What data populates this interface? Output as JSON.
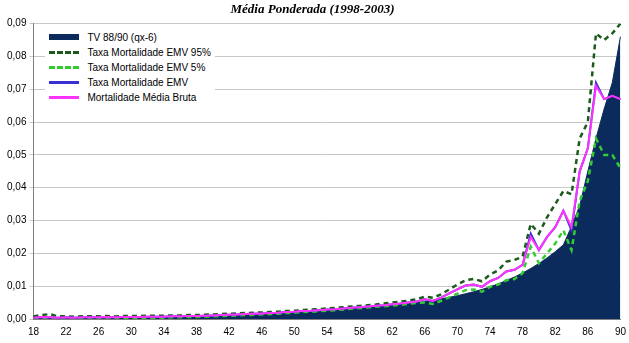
{
  "chart_data": {
    "type": "line",
    "title": "Média Ponderada (1998-2003)",
    "categories": [
      "18",
      null,
      null,
      null,
      "22",
      null,
      null,
      null,
      "26",
      null,
      null,
      null,
      "30",
      null,
      null,
      null,
      "34",
      null,
      null,
      null,
      "38",
      null,
      null,
      null,
      "42",
      null,
      null,
      null,
      "46",
      null,
      null,
      null,
      "50",
      null,
      null,
      null,
      "54",
      null,
      null,
      null,
      "58",
      null,
      null,
      null,
      "62",
      null,
      null,
      null,
      "66",
      null,
      null,
      null,
      "70",
      null,
      null,
      null,
      "74",
      null,
      null,
      null,
      "78",
      null,
      null,
      null,
      "82",
      null,
      null,
      null,
      "86",
      null,
      null,
      null,
      "90"
    ],
    "ylim": [
      0,
      0.09
    ],
    "yticks": [
      {
        "value": 0,
        "label": "0,00"
      },
      {
        "value": 0.01,
        "label": "0,01"
      },
      {
        "value": 0.02,
        "label": "0,02"
      },
      {
        "value": 0.03,
        "label": "0,03"
      },
      {
        "value": 0.04,
        "label": "0,04"
      },
      {
        "value": 0.05,
        "label": "0,05"
      },
      {
        "value": 0.06,
        "label": "0,06"
      },
      {
        "value": 0.07,
        "label": "0,07"
      },
      {
        "value": 0.08,
        "label": "0,08"
      },
      {
        "value": 0.09,
        "label": "0,09"
      }
    ],
    "grid": true,
    "legend": "upper left",
    "series": [
      {
        "name": "TV 88/90 (qx-6)",
        "type": "area",
        "color": "#0b2b5c",
        "line_style": "solid",
        "values": [
          0.0004,
          0.0004,
          0.0004,
          0.0004,
          0.0004,
          0.0004,
          0.0004,
          0.0004,
          0.0004,
          0.0004,
          0.0004,
          0.0005,
          0.0005,
          0.0005,
          0.0006,
          0.0006,
          0.0006,
          0.0007,
          0.0007,
          0.0008,
          0.0008,
          0.0009,
          0.0009,
          0.001,
          0.0011,
          0.0011,
          0.0012,
          0.0013,
          0.0015,
          0.0016,
          0.0017,
          0.0018,
          0.002,
          0.0021,
          0.0022,
          0.0024,
          0.0025,
          0.0027,
          0.0029,
          0.0031,
          0.0033,
          0.0035,
          0.0037,
          0.0039,
          0.0042,
          0.0044,
          0.0047,
          0.005,
          0.0053,
          0.0057,
          0.0061,
          0.0066,
          0.0071,
          0.0077,
          0.0083,
          0.009,
          0.0098,
          0.0107,
          0.0117,
          0.0128,
          0.014,
          0.0154,
          0.0169,
          0.0186,
          0.0205,
          0.0226,
          0.0282,
          0.0345,
          0.045,
          0.055,
          0.064,
          0.072,
          0.086
        ]
      },
      {
        "name": "Taxa Mortalidade EMV 95%",
        "type": "line",
        "color": "#1d5a1d",
        "line_style": "dashed",
        "values": [
          0.0008,
          0.0012,
          0.0015,
          0.0008,
          0.0008,
          0.0007,
          0.0008,
          0.0008,
          0.0008,
          0.0009,
          0.0008,
          0.0009,
          0.0009,
          0.0009,
          0.001,
          0.001,
          0.001,
          0.0011,
          0.0011,
          0.0012,
          0.0012,
          0.0013,
          0.0014,
          0.0015,
          0.0016,
          0.0017,
          0.0018,
          0.0019,
          0.002,
          0.0021,
          0.0022,
          0.0024,
          0.0025,
          0.0027,
          0.0029,
          0.003,
          0.0032,
          0.0034,
          0.0036,
          0.0038,
          0.004,
          0.0042,
          0.0044,
          0.0047,
          0.005,
          0.0053,
          0.0056,
          0.006,
          0.0068,
          0.0065,
          0.0075,
          0.009,
          0.0105,
          0.0118,
          0.0122,
          0.0115,
          0.0135,
          0.0148,
          0.0175,
          0.018,
          0.019,
          0.029,
          0.026,
          0.031,
          0.035,
          0.039,
          0.038,
          0.055,
          0.06,
          0.087,
          0.085,
          0.087,
          0.09
        ]
      },
      {
        "name": "Taxa Mortalidade EMV 5%",
        "type": "line",
        "color": "#33cc33",
        "line_style": "dashed",
        "values": [
          0.0001,
          0.0002,
          0.0002,
          0.0001,
          0.0002,
          0.0002,
          0.0002,
          0.0002,
          0.0002,
          0.0003,
          0.0003,
          0.0003,
          0.0003,
          0.0003,
          0.0004,
          0.0004,
          0.0004,
          0.0005,
          0.0005,
          0.0006,
          0.0006,
          0.0007,
          0.0008,
          0.0009,
          0.001,
          0.0011,
          0.0012,
          0.0013,
          0.0014,
          0.0015,
          0.0016,
          0.0018,
          0.0019,
          0.0021,
          0.0022,
          0.0024,
          0.0025,
          0.0027,
          0.0029,
          0.0031,
          0.0033,
          0.0035,
          0.0037,
          0.0039,
          0.0041,
          0.0043,
          0.0046,
          0.0049,
          0.005,
          0.0046,
          0.0055,
          0.0066,
          0.0077,
          0.0088,
          0.009,
          0.0083,
          0.0098,
          0.0105,
          0.0118,
          0.0122,
          0.014,
          0.022,
          0.017,
          0.02,
          0.023,
          0.027,
          0.021,
          0.036,
          0.042,
          0.055,
          0.05,
          0.05,
          0.046
        ]
      },
      {
        "name": "Taxa Mortalidade EMV",
        "type": "line",
        "color": "#3a2fd6",
        "line_style": "solid",
        "values": [
          0.0004,
          0.0006,
          0.0005,
          0.0004,
          0.0005,
          0.0004,
          0.0005,
          0.0005,
          0.0005,
          0.0006,
          0.0005,
          0.0006,
          0.0006,
          0.0006,
          0.0007,
          0.0007,
          0.0007,
          0.0008,
          0.0008,
          0.0009,
          0.0009,
          0.001,
          0.0011,
          0.0012,
          0.0013,
          0.0014,
          0.0015,
          0.0016,
          0.0017,
          0.0018,
          0.0019,
          0.0021,
          0.0022,
          0.0024,
          0.0025,
          0.0027,
          0.0029,
          0.003,
          0.0032,
          0.0034,
          0.0036,
          0.0038,
          0.004,
          0.0042,
          0.0045,
          0.0047,
          0.005,
          0.0053,
          0.006,
          0.0055,
          0.0065,
          0.0078,
          0.009,
          0.0102,
          0.0105,
          0.0098,
          0.0115,
          0.0125,
          0.0145,
          0.015,
          0.0165,
          0.026,
          0.021,
          0.025,
          0.028,
          0.033,
          0.027,
          0.045,
          0.052,
          0.072,
          0.067,
          0.068,
          0.067
        ]
      },
      {
        "name": "Mortalidade Média Bruta",
        "type": "line",
        "color": "#ff33ff",
        "line_style": "solid",
        "values": [
          0.0004,
          0.0006,
          0.0005,
          0.0004,
          0.0005,
          0.0004,
          0.0005,
          0.0005,
          0.0005,
          0.0006,
          0.0005,
          0.0006,
          0.0006,
          0.0006,
          0.0007,
          0.0007,
          0.0007,
          0.0008,
          0.0008,
          0.0009,
          0.0009,
          0.001,
          0.0011,
          0.0012,
          0.0013,
          0.0014,
          0.0015,
          0.0016,
          0.0017,
          0.0018,
          0.0019,
          0.0021,
          0.0022,
          0.0024,
          0.0025,
          0.0027,
          0.0029,
          0.003,
          0.0032,
          0.0034,
          0.0036,
          0.0038,
          0.004,
          0.0042,
          0.0045,
          0.0047,
          0.005,
          0.0053,
          0.006,
          0.0055,
          0.0065,
          0.0078,
          0.009,
          0.0102,
          0.0105,
          0.0098,
          0.0115,
          0.0125,
          0.0145,
          0.015,
          0.0165,
          0.025,
          0.021,
          0.025,
          0.028,
          0.033,
          0.028,
          0.045,
          0.052,
          0.071,
          0.067,
          0.068,
          0.067
        ]
      }
    ]
  }
}
